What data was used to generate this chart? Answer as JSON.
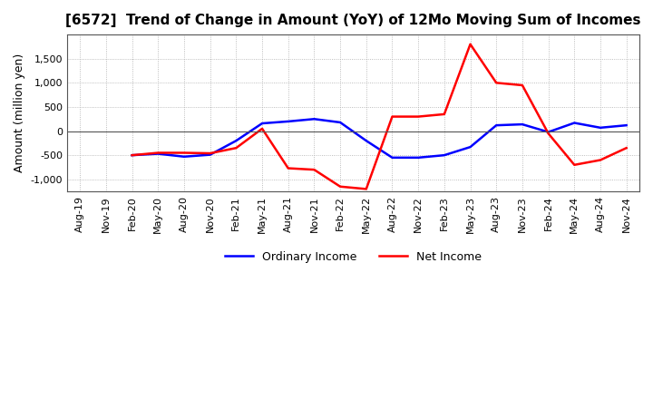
{
  "title": "[6572]  Trend of Change in Amount (YoY) of 12Mo Moving Sum of Incomes",
  "ylabel": "Amount (million yen)",
  "ylim": [
    -1250,
    2000
  ],
  "yticks": [
    -1000,
    -500,
    0,
    500,
    1000,
    1500
  ],
  "background_color": "#ffffff",
  "grid_color": "#aaaaaa",
  "ordinary_income_color": "#0000ff",
  "net_income_color": "#ff0000",
  "dates": [
    "Aug-19",
    "Nov-19",
    "Feb-20",
    "May-20",
    "Aug-20",
    "Nov-20",
    "Feb-21",
    "May-21",
    "Aug-21",
    "Nov-21",
    "Feb-22",
    "May-22",
    "Aug-22",
    "Nov-22",
    "Feb-23",
    "May-23",
    "Aug-23",
    "Nov-23",
    "Feb-24",
    "May-24",
    "Aug-24",
    "Nov-24"
  ],
  "ordinary_income": [
    null,
    null,
    -500,
    -470,
    -530,
    -490,
    -200,
    160,
    200,
    250,
    180,
    -200,
    -550,
    -550,
    -500,
    -330,
    120,
    140,
    -20,
    170,
    70,
    120
  ],
  "net_income": [
    null,
    null,
    -500,
    -450,
    -450,
    -460,
    -350,
    50,
    -770,
    -800,
    -1150,
    -1200,
    300,
    300,
    350,
    1800,
    1000,
    950,
    -50,
    -700,
    -600,
    -350
  ]
}
